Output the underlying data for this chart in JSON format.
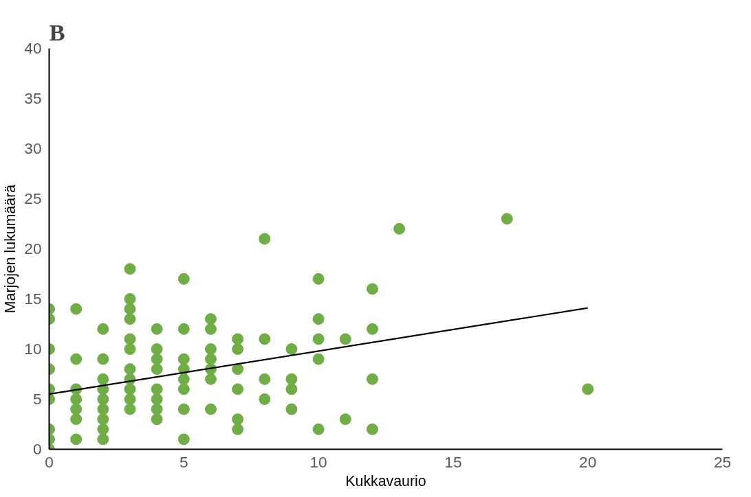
{
  "chart_data": {
    "type": "scatter",
    "title": "B",
    "xlabel": "Kukkavaurio",
    "ylabel": "Marjojen lukumäärä",
    "xlim": [
      0,
      25
    ],
    "ylim": [
      0,
      40
    ],
    "xticks": [
      0,
      5,
      10,
      15,
      20,
      25
    ],
    "yticks": [
      0,
      5,
      10,
      15,
      20,
      25,
      30,
      35,
      40
    ],
    "marker": "circle",
    "series": [
      {
        "color": "#70ad47",
        "x": [
          0,
          0,
          0,
          0,
          0,
          0,
          0,
          0,
          0,
          1,
          1,
          1,
          1,
          1,
          1,
          1,
          2,
          2,
          2,
          2,
          2,
          2,
          2,
          2,
          2,
          3,
          3,
          3,
          3,
          3,
          3,
          3,
          3,
          3,
          3,
          3,
          4,
          4,
          4,
          4,
          4,
          4,
          4,
          4,
          5,
          5,
          5,
          5,
          5,
          5,
          5,
          5,
          6,
          6,
          6,
          6,
          6,
          6,
          6,
          7,
          7,
          7,
          7,
          7,
          7,
          8,
          8,
          8,
          8,
          9,
          9,
          9,
          9,
          10,
          10,
          10,
          10,
          10,
          11,
          11,
          12,
          12,
          12,
          12,
          13,
          17,
          20
        ],
        "values": [
          14,
          13,
          10,
          8,
          6,
          5,
          2,
          1,
          0,
          14,
          9,
          6,
          5,
          4,
          3,
          1,
          12,
          9,
          7,
          6,
          5,
          4,
          3,
          2,
          1,
          18,
          15,
          14,
          13,
          11,
          10,
          8,
          7,
          6,
          5,
          4,
          12,
          10,
          9,
          8,
          6,
          5,
          4,
          3,
          17,
          12,
          9,
          8,
          7,
          6,
          4,
          1,
          13,
          12,
          10,
          9,
          8,
          7,
          4,
          11,
          10,
          8,
          6,
          3,
          2,
          21,
          11,
          7,
          5,
          10,
          7,
          6,
          4,
          17,
          13,
          11,
          9,
          2,
          11,
          3,
          16,
          12,
          7,
          2,
          22,
          23,
          6
        ]
      },
      {
        "type": "line",
        "color": "#000000",
        "line_style": "solid",
        "marker": "none",
        "x": [
          0,
          20
        ],
        "values": [
          5.5,
          14.1
        ]
      }
    ]
  }
}
